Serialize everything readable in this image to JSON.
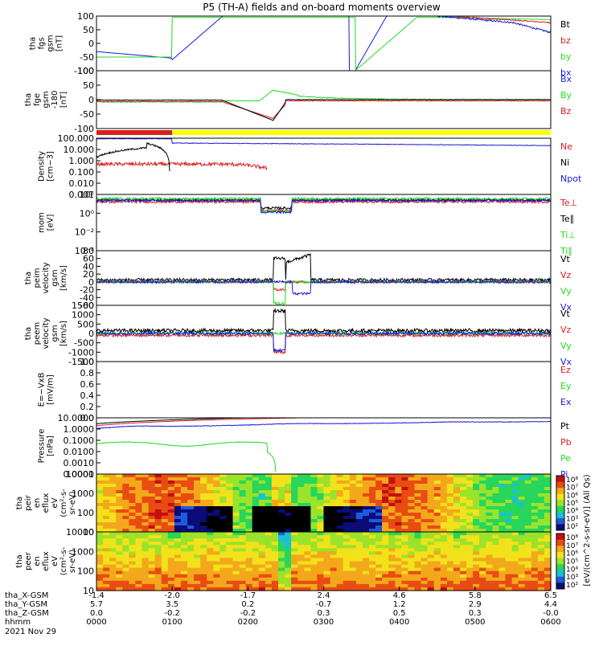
{
  "title": "P5 (TH-A) fields and on-board moments overview",
  "colors": {
    "red": "#d81e1e",
    "green": "#22dd22",
    "blue": "#1a1ad8",
    "black": "#000000",
    "yellow": "#ffff00"
  },
  "chart_data": [
    {
      "type": "line",
      "ylabel": [
        "tha",
        "fgs",
        "gsm",
        "[nT]"
      ],
      "ylim": [
        -100,
        100
      ],
      "yticks": [
        "100",
        "50",
        "0",
        "-50",
        "-100"
      ],
      "series": [
        {
          "name": "Bt",
          "color": "black"
        },
        {
          "name": "bz",
          "color": "red"
        },
        {
          "name": "by",
          "color": "green"
        },
        {
          "name": "bx",
          "color": "blue"
        }
      ]
    },
    {
      "type": "line",
      "ylabel": [
        "tha",
        "fge",
        "gsm",
        "-180",
        "[nT]"
      ],
      "ylim": [
        -125,
        125
      ],
      "yticks": [
        "100",
        "50",
        "0",
        "-50",
        "-100"
      ],
      "series": [
        {
          "name": "Bx",
          "color": "blue"
        },
        {
          "name": "By",
          "color": "green"
        },
        {
          "name": "Bz",
          "color": "red"
        }
      ]
    },
    {
      "type": "line",
      "ylabel": [
        "Density",
        "[cm−3]"
      ],
      "log": true,
      "ylim": [
        0.001,
        100
      ],
      "yticks": [
        "100.000",
        "10.000",
        "1.000",
        "0.100",
        "0.010",
        "0.001"
      ],
      "series": [
        {
          "name": "Ne",
          "color": "red"
        },
        {
          "name": "Ni",
          "color": "black"
        },
        {
          "name": "Npot",
          "color": "blue"
        }
      ]
    },
    {
      "type": "line",
      "ylabel": [
        "mom",
        "[eV]"
      ],
      "log": true,
      "ylim": [
        0.0001,
        1000
      ],
      "yticks": [
        "10²",
        "10⁰",
        "10⁻²",
        "10⁻⁴"
      ],
      "series": [
        {
          "name": "Te⊥",
          "color": "red"
        },
        {
          "name": "Te∥",
          "color": "black"
        },
        {
          "name": "Ti⊥",
          "color": "green"
        },
        {
          "name": "Ti∥",
          "color": "green"
        }
      ]
    },
    {
      "type": "line",
      "ylabel": [
        "tha",
        "peim",
        "velocity",
        "gsm",
        "[km/s]"
      ],
      "ylim": [
        -60,
        80
      ],
      "yticks": [
        "80",
        "60",
        "40",
        "20",
        "0",
        "-20",
        "-40",
        "-60"
      ],
      "series": [
        {
          "name": "Vt",
          "color": "black"
        },
        {
          "name": "Vz",
          "color": "red"
        },
        {
          "name": "Vy",
          "color": "green"
        },
        {
          "name": "Vx",
          "color": "blue"
        }
      ]
    },
    {
      "type": "line",
      "ylabel": [
        "tha",
        "peem",
        "velocity",
        "gsm",
        "[km/s]"
      ],
      "ylim": [
        -1500,
        1500
      ],
      "yticks": [
        "1500",
        "1000",
        "500",
        "0",
        "-500",
        "-1000",
        "-1500"
      ],
      "series": [
        {
          "name": "Vt",
          "color": "black"
        },
        {
          "name": "Vz",
          "color": "red"
        },
        {
          "name": "Vy",
          "color": "green"
        },
        {
          "name": "Vx",
          "color": "blue"
        }
      ]
    },
    {
      "type": "line",
      "ylabel": [
        "E=−VxB",
        "[mV/m]"
      ],
      "ylim": [
        0,
        1
      ],
      "yticks": [
        "1.0",
        "0.8",
        "0.6",
        "0.4",
        "0.2",
        "0.0"
      ],
      "series": [
        {
          "name": "Ez",
          "color": "red"
        },
        {
          "name": "Ey",
          "color": "green"
        },
        {
          "name": "Ex",
          "color": "blue"
        }
      ]
    },
    {
      "type": "line",
      "ylabel": [
        "Pressure",
        "[nPa]"
      ],
      "log": true,
      "ylim": [
        0.0001,
        10
      ],
      "yticks": [
        "10.0000",
        "1.0000",
        "0.1000",
        "0.0100",
        "0.0010",
        "0.0001"
      ],
      "series": [
        {
          "name": "Pt",
          "color": "black"
        },
        {
          "name": "Pb",
          "color": "red"
        },
        {
          "name": "Pe",
          "color": "green"
        },
        {
          "name": "Pi",
          "color": "blue"
        }
      ]
    },
    {
      "type": "heatmap",
      "ylabel": [
        "tha",
        "peir",
        "en",
        "eflux",
        "eV",
        "(cm²-s-",
        "sr-eV)"
      ],
      "log": true,
      "ylim": [
        5,
        30000
      ],
      "yticks": [
        "10000",
        "1000",
        "100",
        "10"
      ]
    },
    {
      "type": "heatmap",
      "ylabel": [
        "tha",
        "peer",
        "en",
        "eflux",
        "eV",
        "(cm²-s-",
        "sr-eV)"
      ],
      "log": true,
      "ylim": [
        5,
        30000
      ],
      "yticks": [
        "10000",
        "1000",
        "100",
        "10"
      ]
    }
  ],
  "colorbar": {
    "ticks": [
      "10⁸",
      "10⁷",
      "10⁶",
      "10⁵",
      "10⁴",
      "10³",
      "10²"
    ],
    "label": "[eV/(cm^2-s-sr-eV)] (All Qs)"
  },
  "xaxis": {
    "row_labels": [
      "tha_X-GSM",
      "tha_Y-GSM",
      "tha_Z-GSM",
      "hhmm",
      "2021 Nov 29"
    ],
    "columns": [
      {
        "x": "-1.4",
        "y": "5.7",
        "z": "0.0",
        "t": "0000"
      },
      {
        "x": "-2.0",
        "y": "3.5",
        "z": "-0.2",
        "t": "0100"
      },
      {
        "x": "-1.7",
        "y": "0.2",
        "z": "-0.2",
        "t": "0200"
      },
      {
        "x": "2.4",
        "y": "-0.7",
        "z": "0.3",
        "t": "0300"
      },
      {
        "x": "4.6",
        "y": "1.2",
        "z": "0.5",
        "t": "0400"
      },
      {
        "x": "5.8",
        "y": "2.9",
        "z": "0.3",
        "t": "0500"
      },
      {
        "x": "6.5",
        "y": "4.4",
        "z": "-0.0",
        "t": "0600"
      }
    ]
  }
}
